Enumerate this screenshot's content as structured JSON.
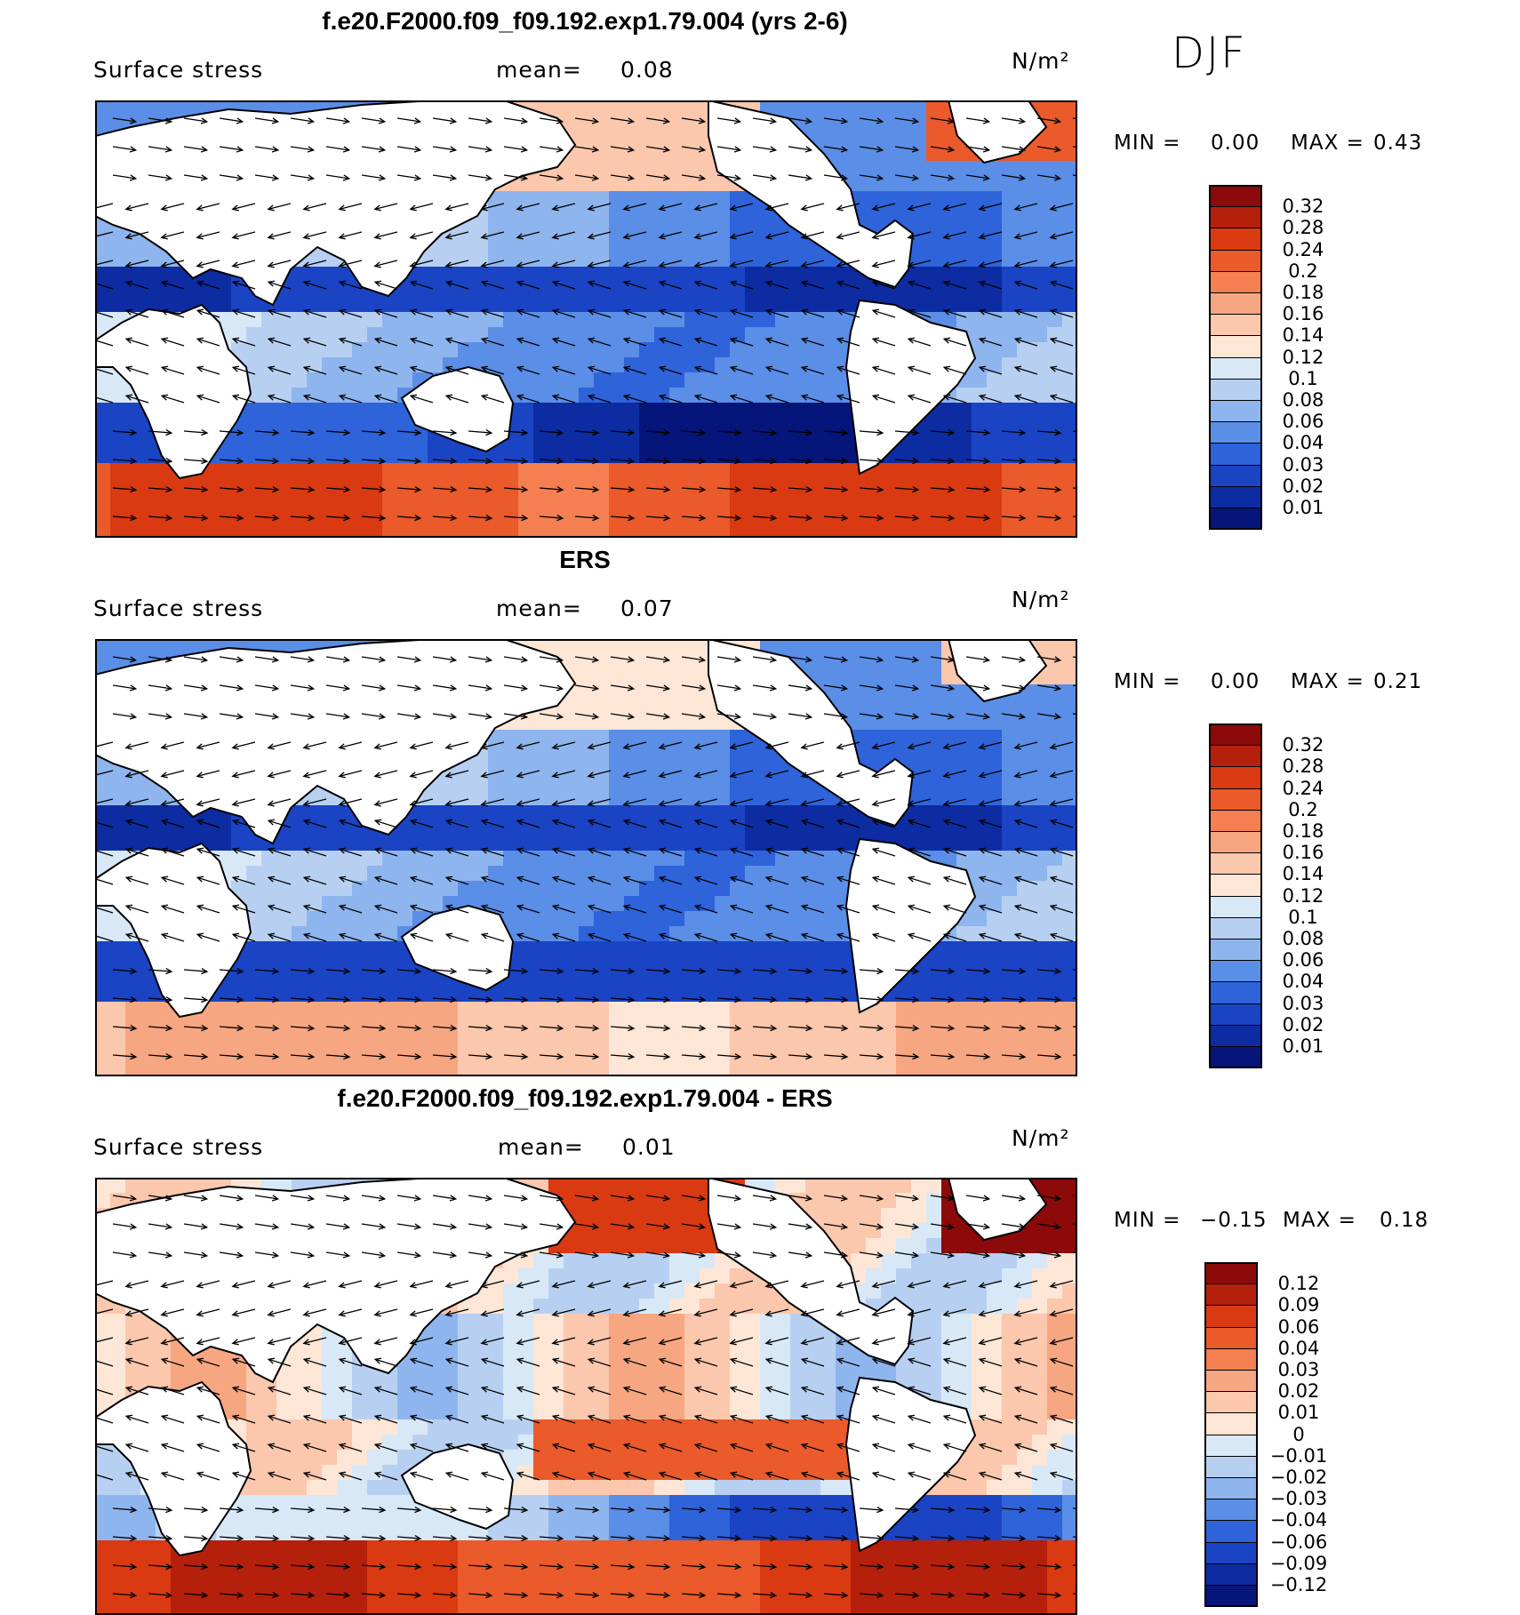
{
  "season": "DJF",
  "panels": [
    {
      "title": "f.e20.F2000.f09_f09.192.exp1.79.004 (yrs 2-6)",
      "variable": "Surface stress",
      "mean_label": "mean=",
      "mean_value": "0.08",
      "units": "N/m²",
      "min_label": "MIN =",
      "min_value": "0.00",
      "max_label": "MAX =",
      "max_value": "0.43",
      "colorbar_ticks": [
        "0.32",
        "0.28",
        "0.24",
        "0.2",
        "0.18",
        "0.16",
        "0.14",
        "0.12",
        "0.1",
        "0.08",
        "0.06",
        "0.04",
        "0.03",
        "0.02",
        "0.01"
      ],
      "colorbar_colors": [
        "#8c0a0a",
        "#b5200d",
        "#d93a12",
        "#ea5a2a",
        "#f47f50",
        "#f7a682",
        "#fbc7ad",
        "#fde6d6",
        "#d8e8f7",
        "#b7d0f2",
        "#8fb5ee",
        "#5b8ee6",
        "#2f63da",
        "#1a44c4",
        "#0d2ca2",
        "#06157a"
      ]
    },
    {
      "title": "ERS",
      "variable": "Surface stress",
      "mean_label": "mean=",
      "mean_value": "0.07",
      "units": "N/m²",
      "min_label": "MIN =",
      "min_value": "0.00",
      "max_label": "MAX =",
      "max_value": "0.21",
      "colorbar_ticks": [
        "0.32",
        "0.28",
        "0.24",
        "0.2",
        "0.18",
        "0.16",
        "0.14",
        "0.12",
        "0.1",
        "0.08",
        "0.06",
        "0.04",
        "0.03",
        "0.02",
        "0.01"
      ],
      "colorbar_colors": [
        "#8c0a0a",
        "#b5200d",
        "#d93a12",
        "#ea5a2a",
        "#f47f50",
        "#f7a682",
        "#fbc7ad",
        "#fde6d6",
        "#d8e8f7",
        "#b7d0f2",
        "#8fb5ee",
        "#5b8ee6",
        "#2f63da",
        "#1a44c4",
        "#0d2ca2",
        "#06157a"
      ]
    },
    {
      "title": "f.e20.F2000.f09_f09.192.exp1.79.004 - ERS",
      "variable": "Surface stress",
      "mean_label": "mean=",
      "mean_value": "0.01",
      "units": "N/m²",
      "min_label": "MIN =",
      "min_value": "−0.15",
      "max_label": "MAX =",
      "max_value": "0.18",
      "colorbar_ticks": [
        "0.12",
        "0.09",
        "0.06",
        "0.04",
        "0.03",
        "0.02",
        "0.01",
        "0",
        "−0.01",
        "−0.02",
        "−0.03",
        "−0.04",
        "−0.06",
        "−0.09",
        "−0.12"
      ],
      "colorbar_colors": [
        "#8c0a0a",
        "#b5200d",
        "#d93a12",
        "#ea5a2a",
        "#f47f50",
        "#f7a682",
        "#fbc7ad",
        "#fde6d6",
        "#d8e8f7",
        "#b7d0f2",
        "#8fb5ee",
        "#5b8ee6",
        "#2f63da",
        "#1a44c4",
        "#0d2ca2",
        "#06157a"
      ]
    }
  ]
}
